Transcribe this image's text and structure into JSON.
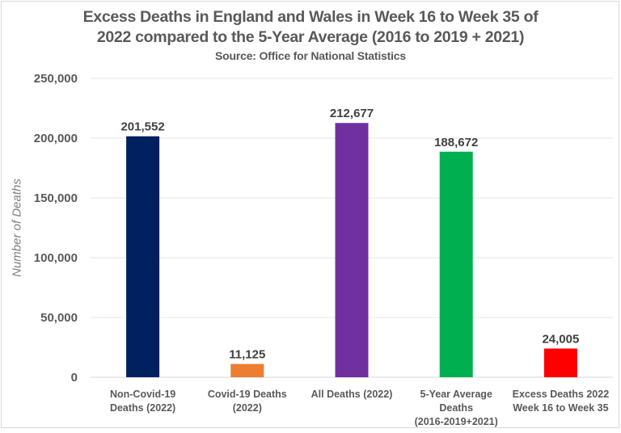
{
  "chart_data": {
    "type": "bar",
    "title_lines": [
      "Excess Deaths in England and Wales in Week 16 to Week 35 of",
      "2022 compared to the 5-Year Average (2016 to 2019 + 2021)"
    ],
    "subtitle": "Source: Office for National Statistics",
    "xlabel": "",
    "ylabel": "Number of Deaths",
    "ylim": [
      0,
      250000
    ],
    "yticks": [
      0,
      50000,
      100000,
      150000,
      200000,
      250000
    ],
    "ytick_labels": [
      "0",
      "50,000",
      "100,000",
      "150,000",
      "200,000",
      "250,000"
    ],
    "grid": true,
    "legend": "none",
    "categories": [
      [
        "Non-Covid-19",
        "Deaths (2022)"
      ],
      [
        "Covid-19 Deaths",
        "(2022)"
      ],
      [
        "All Deaths (2022)"
      ],
      [
        "5-Year Average",
        "Deaths",
        "(2016-2019+2021)"
      ],
      [
        "Excess Deaths 2022",
        "Week 16 to Week 35"
      ]
    ],
    "values": [
      201552,
      11125,
      212677,
      188672,
      24005
    ],
    "data_labels": [
      "201,552",
      "11,125",
      "212,677",
      "188,672",
      "24,005"
    ],
    "colors": [
      "#002060",
      "#ed7d31",
      "#7030a0",
      "#00b050",
      "#ff0000"
    ]
  }
}
